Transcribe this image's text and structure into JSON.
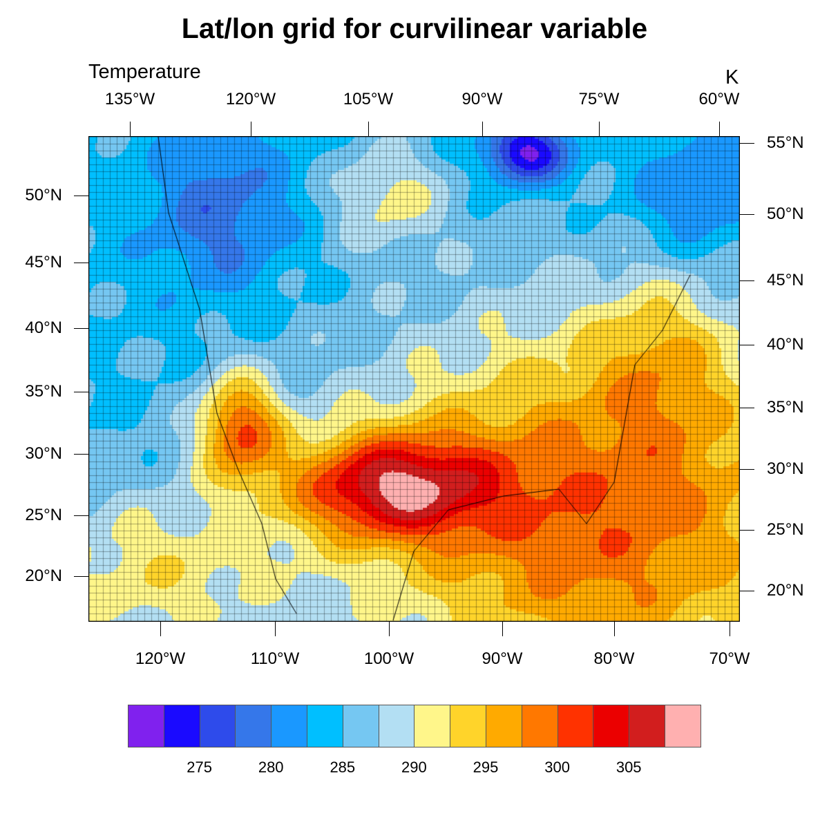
{
  "title": "Lat/lon grid for curvilinear variable",
  "left_string": "Temperature",
  "right_string": "K",
  "top_axis": [
    "135°W",
    "120°W",
    "105°W",
    "90°W",
    "75°W",
    "60°W"
  ],
  "bottom_axis": [
    "120°W",
    "110°W",
    "100°W",
    "90°W",
    "80°W",
    "70°W"
  ],
  "left_axis": [
    "50°N",
    "45°N",
    "40°N",
    "35°N",
    "30°N",
    "25°N",
    "20°N"
  ],
  "right_axis": [
    "55°N",
    "50°N",
    "45°N",
    "40°N",
    "35°N",
    "30°N",
    "25°N",
    "20°N"
  ],
  "chart_data": {
    "type": "heatmap",
    "title": "Lat/lon grid for curvilinear variable",
    "variable": "Temperature",
    "units": "K",
    "contour_levels": [
      272.5,
      275,
      277.5,
      280,
      282.5,
      285,
      287.5,
      290,
      292.5,
      295,
      297.5,
      300,
      302.5,
      305,
      307.5
    ],
    "colorbar_labels": [
      "275",
      "280",
      "285",
      "290",
      "295",
      "300",
      "305"
    ],
    "colors": [
      "#8021EE",
      "#1A0AFF",
      "#2E4BEB",
      "#3577EA",
      "#1A98FF",
      "#00BFFF",
      "#75C7F2",
      "#B3DFF3",
      "#FFF68A",
      "#FFD42A",
      "#FFAA00",
      "#FF7800",
      "#FF3200",
      "#EB0000",
      "#D21E1E",
      "#FFB0B0"
    ]
  }
}
